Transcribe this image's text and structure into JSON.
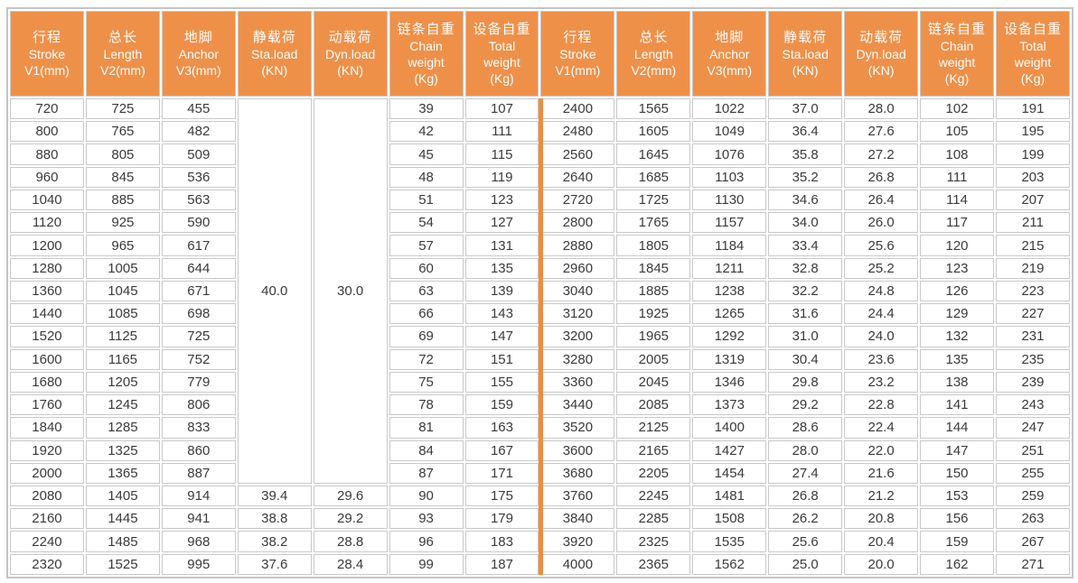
{
  "colors": {
    "header_bg": "#EF9049",
    "divider": "#F08C3C",
    "grid": "#C9C9C9",
    "text": "#3A3A3A",
    "header_text": "#FFFFFF"
  },
  "header": {
    "columns": [
      {
        "name": "stroke",
        "lines": [
          "行程",
          "Stroke",
          "V1(mm)"
        ]
      },
      {
        "name": "length",
        "lines": [
          "总长",
          "Length",
          "V2(mm)"
        ]
      },
      {
        "name": "anchor",
        "lines": [
          "地脚",
          "Anchor",
          "V3(mm)"
        ]
      },
      {
        "name": "static-load",
        "lines": [
          "静载荷",
          "Sta.load",
          "(KN)"
        ]
      },
      {
        "name": "dynamic-load",
        "lines": [
          "动载荷",
          "Dyn.load",
          "(KN)"
        ]
      },
      {
        "name": "chain-weight",
        "lines": [
          "链条自重",
          "Chain",
          "weight",
          "(Kg)"
        ]
      },
      {
        "name": "total-weight",
        "lines": [
          "设备自重",
          "Total",
          "weight",
          "(Kg)"
        ]
      }
    ]
  },
  "left_table": {
    "merged_static_load": "40.0",
    "merged_dynamic_load": "30.0",
    "merged_row_span": 17,
    "rows": [
      [
        "720",
        "725",
        "455",
        null,
        null,
        "39",
        "107"
      ],
      [
        "800",
        "765",
        "482",
        null,
        null,
        "42",
        "111"
      ],
      [
        "880",
        "805",
        "509",
        null,
        null,
        "45",
        "115"
      ],
      [
        "960",
        "845",
        "536",
        null,
        null,
        "48",
        "119"
      ],
      [
        "1040",
        "885",
        "563",
        null,
        null,
        "51",
        "123"
      ],
      [
        "1120",
        "925",
        "590",
        null,
        null,
        "54",
        "127"
      ],
      [
        "1200",
        "965",
        "617",
        null,
        null,
        "57",
        "131"
      ],
      [
        "1280",
        "1005",
        "644",
        null,
        null,
        "60",
        "135"
      ],
      [
        "1360",
        "1045",
        "671",
        null,
        null,
        "63",
        "139"
      ],
      [
        "1440",
        "1085",
        "698",
        null,
        null,
        "66",
        "143"
      ],
      [
        "1520",
        "1125",
        "725",
        null,
        null,
        "69",
        "147"
      ],
      [
        "1600",
        "1165",
        "752",
        null,
        null,
        "72",
        "151"
      ],
      [
        "1680",
        "1205",
        "779",
        null,
        null,
        "75",
        "155"
      ],
      [
        "1760",
        "1245",
        "806",
        null,
        null,
        "78",
        "159"
      ],
      [
        "1840",
        "1285",
        "833",
        null,
        null,
        "81",
        "163"
      ],
      [
        "1920",
        "1325",
        "860",
        null,
        null,
        "84",
        "167"
      ],
      [
        "2000",
        "1365",
        "887",
        null,
        null,
        "87",
        "171"
      ],
      [
        "2080",
        "1405",
        "914",
        "39.4",
        "29.6",
        "90",
        "175"
      ],
      [
        "2160",
        "1445",
        "941",
        "38.8",
        "29.2",
        "93",
        "179"
      ],
      [
        "2240",
        "1485",
        "968",
        "38.2",
        "28.8",
        "96",
        "183"
      ],
      [
        "2320",
        "1525",
        "995",
        "37.6",
        "28.4",
        "99",
        "187"
      ]
    ]
  },
  "right_table": {
    "rows": [
      [
        "2400",
        "1565",
        "1022",
        "37.0",
        "28.0",
        "102",
        "191"
      ],
      [
        "2480",
        "1605",
        "1049",
        "36.4",
        "27.6",
        "105",
        "195"
      ],
      [
        "2560",
        "1645",
        "1076",
        "35.8",
        "27.2",
        "108",
        "199"
      ],
      [
        "2640",
        "1685",
        "1103",
        "35.2",
        "26.8",
        "111",
        "203"
      ],
      [
        "2720",
        "1725",
        "1130",
        "34.6",
        "26.4",
        "114",
        "207"
      ],
      [
        "2800",
        "1765",
        "1157",
        "34.0",
        "26.0",
        "117",
        "211"
      ],
      [
        "2880",
        "1805",
        "1184",
        "33.4",
        "25.6",
        "120",
        "215"
      ],
      [
        "2960",
        "1845",
        "1211",
        "32.8",
        "25.2",
        "123",
        "219"
      ],
      [
        "3040",
        "1885",
        "1238",
        "32.2",
        "24.8",
        "126",
        "223"
      ],
      [
        "3120",
        "1925",
        "1265",
        "31.6",
        "24.4",
        "129",
        "227"
      ],
      [
        "3200",
        "1965",
        "1292",
        "31.0",
        "24.0",
        "132",
        "231"
      ],
      [
        "3280",
        "2005",
        "1319",
        "30.4",
        "23.6",
        "135",
        "235"
      ],
      [
        "3360",
        "2045",
        "1346",
        "29.8",
        "23.2",
        "138",
        "239"
      ],
      [
        "3440",
        "2085",
        "1373",
        "29.2",
        "22.8",
        "141",
        "243"
      ],
      [
        "3520",
        "2125",
        "1400",
        "28.6",
        "22.4",
        "144",
        "247"
      ],
      [
        "3600",
        "2165",
        "1427",
        "28.0",
        "22.0",
        "147",
        "251"
      ],
      [
        "3680",
        "2205",
        "1454",
        "27.4",
        "21.6",
        "150",
        "255"
      ],
      [
        "3760",
        "2245",
        "1481",
        "26.8",
        "21.2",
        "153",
        "259"
      ],
      [
        "3840",
        "2285",
        "1508",
        "26.2",
        "20.8",
        "156",
        "263"
      ],
      [
        "3920",
        "2325",
        "1535",
        "25.6",
        "20.4",
        "159",
        "267"
      ],
      [
        "4000",
        "2365",
        "1562",
        "25.0",
        "20.0",
        "162",
        "271"
      ]
    ]
  }
}
